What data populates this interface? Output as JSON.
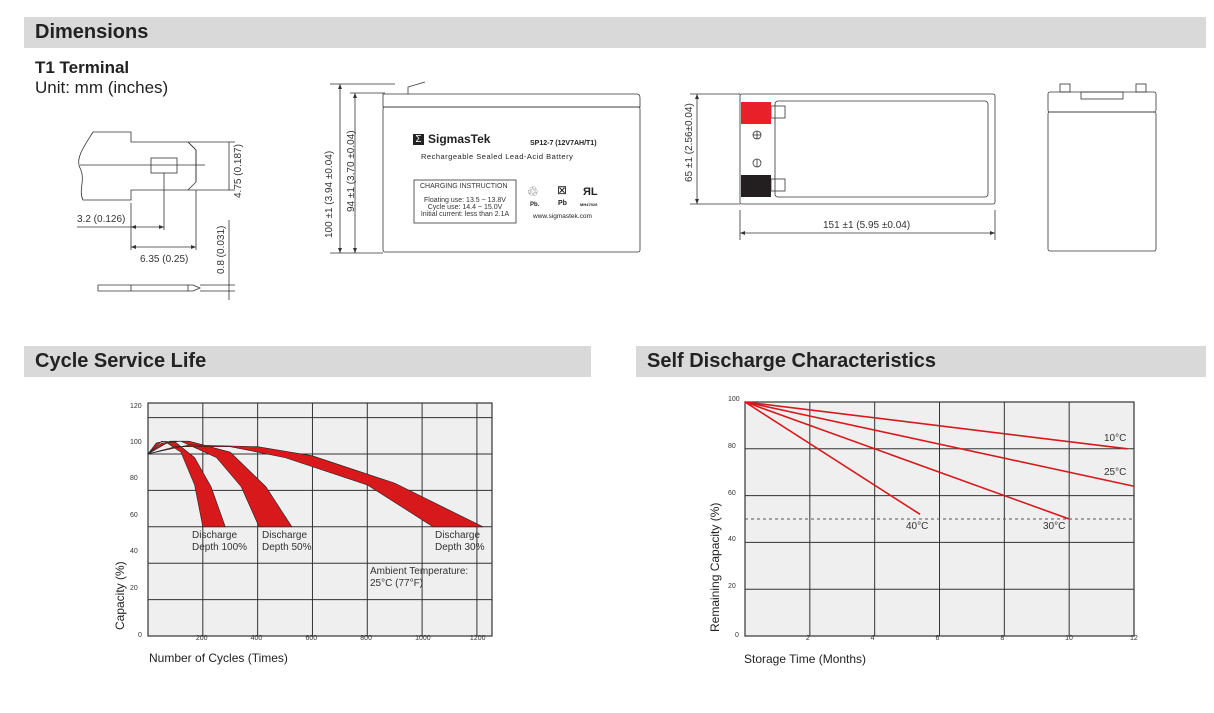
{
  "dimensions": {
    "section_title": "Dimensions",
    "terminal_title": "T1 Terminal",
    "unit_label": "Unit: mm (inches)",
    "terminal": {
      "height_label": "4.75 (0.187)",
      "hole_offset_label": "3.2 (0.126)",
      "length_label": "6.35 (0.25)",
      "thickness_label": "0.8 (0.031)"
    },
    "front_view": {
      "total_height_label": "100 ±1 (3.94 ±0.04)",
      "case_height_label": "94 ±1 (3.70 ±0.04)",
      "brand": "SigmasTek",
      "brand_logo_glyph": "Σ",
      "model": "SP12-7 (12V7AH/T1)",
      "subtitle": "Rechargeable Sealed Lead-Acid Battery",
      "charging_title": "CHARGING INSTRUCTION",
      "charging_lines": [
        "Floating use: 13.5 ~ 13.8V",
        "Cycle use: 14.4 ~ 15.0V",
        "Initial current: less than 2.1A"
      ],
      "recycle_label": "Pb.",
      "bin_label": "Pb",
      "ul_label": "MH47929",
      "website": "www.sigmastek.com"
    },
    "top_view": {
      "width_label": "65 ±1 (2.56±0.04)",
      "length_label": "151 ±1 (5.95 ±0.04)",
      "positive_color": "#e8202a",
      "negative_color": "#231f20"
    }
  },
  "cycle_life": {
    "section_title": "Cycle Service Life",
    "chart_data": {
      "type": "area",
      "xlabel": "Number of Cycles (Times)",
      "ylabel": "Capacity (%)",
      "xlim": [
        0,
        1255
      ],
      "ylim": [
        0,
        128
      ],
      "xticks": [
        "0",
        "200",
        "400",
        "600",
        "800",
        "1000",
        "1200"
      ],
      "yticks": [
        "20",
        "40",
        "60",
        "80",
        "100",
        "120"
      ],
      "grid": true,
      "band_color": "#d7191c",
      "series": [
        {
          "name": "Discharge Depth 100%",
          "label_lines": [
            "Discharge",
            "Depth 100%"
          ],
          "lower": [
            [
              0,
              100
            ],
            [
              30,
              106
            ],
            [
              60,
              107
            ],
            [
              120,
              101
            ],
            [
              170,
              83
            ],
            [
              200,
              60
            ]
          ],
          "upper": [
            [
              0,
              100
            ],
            [
              50,
              107
            ],
            [
              100,
              106.5
            ],
            [
              170,
              98
            ],
            [
              230,
              82
            ],
            [
              282,
              60
            ]
          ]
        },
        {
          "name": "Discharge Depth 50%",
          "label_lines": [
            "Discharge",
            "Depth 50%"
          ],
          "lower": [
            [
              0,
              100
            ],
            [
              50,
              106
            ],
            [
              120,
              107
            ],
            [
              250,
              98
            ],
            [
              340,
              82
            ],
            [
              405,
              60
            ]
          ],
          "upper": [
            [
              0,
              100
            ],
            [
              80,
              107
            ],
            [
              150,
              107
            ],
            [
              300,
              101
            ],
            [
              430,
              82
            ],
            [
              525,
              60
            ]
          ]
        },
        {
          "name": "Discharge Depth 30%",
          "label_lines": [
            "Discharge",
            "Depth 30%"
          ],
          "lower": [
            [
              0,
              100
            ],
            [
              100,
              104
            ],
            [
              300,
              104
            ],
            [
              500,
              98
            ],
            [
              800,
              83
            ],
            [
              1040,
              60
            ]
          ],
          "upper": [
            [
              0,
              100
            ],
            [
              150,
              105
            ],
            [
              400,
              104
            ],
            [
              600,
              99
            ],
            [
              900,
              84
            ],
            [
              1222,
              60
            ]
          ]
        }
      ],
      "annotation_lines": [
        "Ambient Temperature:",
        "25°C (77°F)"
      ]
    }
  },
  "self_discharge": {
    "section_title": "Self Discharge Characteristics",
    "chart_data": {
      "type": "line",
      "xlabel": "Storage Time (Months)",
      "ylabel": "Remaining Capacity (%)",
      "xlim": [
        0,
        12
      ],
      "ylim": [
        0,
        100
      ],
      "xticks": [
        "0",
        "2",
        "4",
        "6",
        "8",
        "10",
        "12"
      ],
      "yticks": [
        "20",
        "40",
        "60",
        "80",
        "100"
      ],
      "grid": true,
      "reference_line": 50,
      "line_color": "#d7191c",
      "series": [
        {
          "name": "10°C",
          "points": [
            [
              0,
              100
            ],
            [
              11.8,
              80
            ]
          ]
        },
        {
          "name": "25°C",
          "points": [
            [
              0,
              100
            ],
            [
              12,
              64
            ]
          ]
        },
        {
          "name": "30°C",
          "points": [
            [
              0,
              100
            ],
            [
              10,
              50
            ]
          ]
        },
        {
          "name": "40°C",
          "points": [
            [
              0,
              100
            ],
            [
              5.4,
              52
            ]
          ]
        }
      ]
    }
  }
}
